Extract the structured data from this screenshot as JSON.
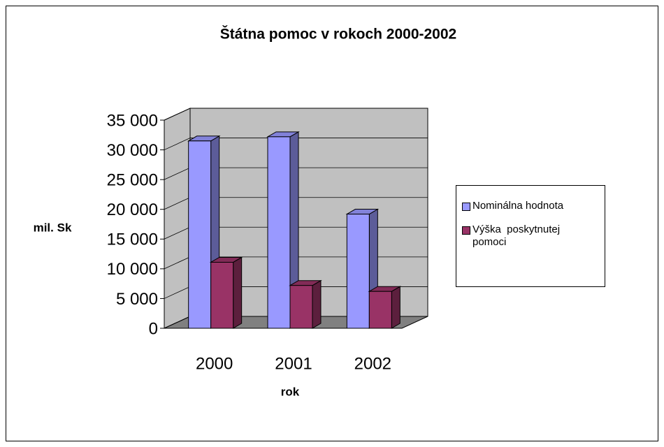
{
  "chart_data": {
    "type": "bar3d",
    "title": "Štátna pomoc v rokoch 2000-2002",
    "x_label": "rok",
    "y_label": "mil. Sk",
    "categories": [
      "2000",
      "2001",
      "2002"
    ],
    "series": [
      {
        "name": "Nominálna hodnota",
        "color": "#9999ff",
        "values": [
          31500,
          32200,
          19200
        ]
      },
      {
        "name": "Výška  poskytnutej pomoci",
        "color": "#993366",
        "values": [
          11100,
          7200,
          6200
        ]
      }
    ],
    "ylim": [
      0,
      35000
    ],
    "yticks": [
      0,
      {
        "value": 5000,
        "label": "5 000"
      },
      {
        "value": 10000,
        "label": "10 000"
      },
      {
        "value": 15000,
        "label": "15 000"
      },
      {
        "value": 20000,
        "label": "20 000"
      },
      {
        "value": 25000,
        "label": "25 000"
      },
      {
        "value": 30000,
        "label": "30 000"
      },
      {
        "value": 35000,
        "label": "35 000"
      }
    ],
    "grid": true,
    "legend": "right"
  }
}
